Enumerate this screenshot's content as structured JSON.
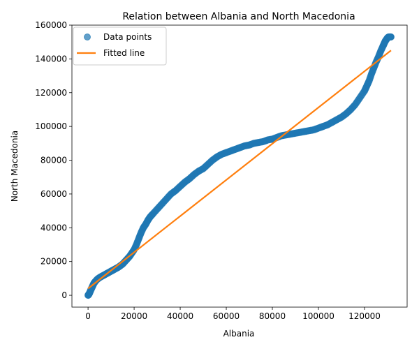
{
  "chart_data": {
    "type": "scatter",
    "title": "Relation between Albania and North Macedonia",
    "xlabel": "Albania",
    "ylabel": "North Macedonia",
    "xlim": [
      -7000,
      138500
    ],
    "ylim": [
      -7000,
      160000
    ],
    "xticks": [
      0,
      20000,
      40000,
      60000,
      80000,
      100000,
      120000
    ],
    "yticks": [
      0,
      20000,
      40000,
      60000,
      80000,
      100000,
      120000,
      140000,
      160000
    ],
    "xtick_labels": [
      "0",
      "20000",
      "40000",
      "60000",
      "80000",
      "100000",
      "120000"
    ],
    "ytick_labels": [
      "0",
      "20000",
      "40000",
      "60000",
      "80000",
      "100000",
      "120000",
      "140000",
      "160000"
    ],
    "grid": false,
    "legend": {
      "placement": "top-left"
    },
    "series": [
      {
        "name": "Data points",
        "kind": "scatter",
        "color": "#1f77b4",
        "x": [
          0,
          300,
          600,
          1000,
          1500,
          2000,
          2500,
          3000,
          4000,
          5000,
          6000,
          7000,
          8000,
          9000,
          10000,
          11000,
          12000,
          13000,
          14000,
          15000,
          16000,
          17000,
          18000,
          19000,
          20000,
          21000,
          22000,
          23000,
          24000,
          25000,
          26000,
          27000,
          28000,
          30000,
          32000,
          34000,
          36000,
          38000,
          40000,
          42000,
          44000,
          46000,
          48000,
          50000,
          52000,
          54000,
          56000,
          58000,
          60000,
          62000,
          64000,
          66000,
          68000,
          70000,
          72000,
          74000,
          76000,
          78000,
          80000,
          82000,
          84000,
          86000,
          88000,
          90000,
          92000,
          94000,
          96000,
          98000,
          100000,
          102000,
          104000,
          106000,
          108000,
          110000,
          112000,
          114000,
          116000,
          118000,
          120000,
          121000,
          122000,
          123000,
          124000,
          125000,
          126000,
          127000,
          128000,
          128500,
          129000,
          129500,
          130000,
          130500,
          131000,
          131500
        ],
        "y": [
          0,
          500,
          1200,
          2500,
          4000,
          5500,
          7000,
          8000,
          9500,
          10500,
          11300,
          12000,
          12800,
          13500,
          14300,
          15000,
          15800,
          16500,
          17500,
          18500,
          20000,
          21500,
          23000,
          25000,
          27000,
          30000,
          33500,
          37000,
          40000,
          42000,
          44500,
          46500,
          48000,
          51000,
          54000,
          57000,
          60000,
          62000,
          64500,
          67000,
          69000,
          71500,
          73500,
          75000,
          77500,
          80000,
          82000,
          83500,
          84500,
          85500,
          86500,
          87500,
          88500,
          89000,
          90000,
          90500,
          91000,
          92000,
          92500,
          93500,
          94500,
          95000,
          95500,
          96000,
          96500,
          97000,
          97500,
          98000,
          99000,
          100000,
          101000,
          102500,
          104000,
          105500,
          107500,
          110000,
          113000,
          117000,
          121000,
          124000,
          127000,
          131000,
          134500,
          138000,
          141000,
          144500,
          147500,
          149000,
          150500,
          151500,
          152500,
          153000,
          153000,
          153000
        ]
      },
      {
        "name": "Fitted line",
        "kind": "line",
        "color": "#ff7f0e",
        "x": [
          0,
          131500
        ],
        "y": [
          4000,
          145000
        ]
      }
    ]
  }
}
